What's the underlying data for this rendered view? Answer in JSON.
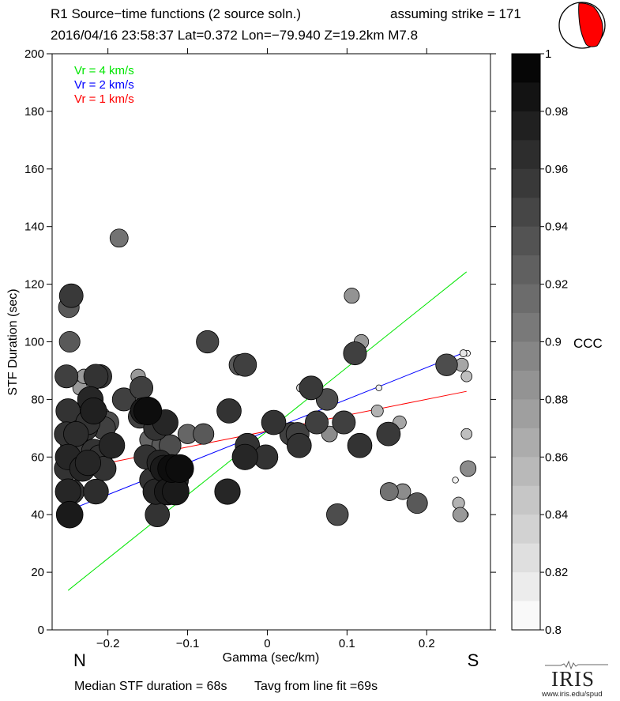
{
  "header": {
    "title": "R1 Source−time functions (2 source soln.)",
    "strike_text": "assuming strike = 171",
    "event_line": "2016/04/16 23:58:37  Lat=0.372 Lon=−79.940  Z=19.2km  M7.8"
  },
  "footer": {
    "median_text": "Median STF duration = 68s",
    "tavg_text": "Tavg from line fit =69s",
    "logo_text": "IRIS",
    "logo_url": "www.iris.edu/spud"
  },
  "direction_labels": {
    "left": "N",
    "right": "S"
  },
  "colors": {
    "vr4": "#00e600",
    "vr2": "#0000ff",
    "vr1": "#ff0000",
    "beachball": "#ff0000"
  },
  "chart_data": {
    "type": "scatter",
    "title": "R1 Source−time functions (2 source soln.)",
    "xlabel": "Gamma (sec/km)",
    "ylabel": "STF Duration (sec)",
    "xlim": [
      -0.27,
      0.28
    ],
    "ylim": [
      0,
      200
    ],
    "x_ticks": [
      -0.2,
      -0.1,
      0,
      0.1,
      0.2
    ],
    "x_tick_labels": [
      "−0.2",
      "−0.1",
      "0",
      "0.1",
      "0.2"
    ],
    "y_ticks": [
      0,
      20,
      40,
      60,
      80,
      100,
      120,
      140,
      160,
      180,
      200
    ],
    "y_tick_labels": [
      "0",
      "20",
      "40",
      "60",
      "80",
      "100",
      "120",
      "140",
      "160",
      "180",
      "200"
    ],
    "legend": [
      {
        "label": "Vr = 4 km/s",
        "color": "#00e600"
      },
      {
        "label": "Vr = 2 km/s",
        "color": "#0000ff"
      },
      {
        "label": "Vr = 1 km/s",
        "color": "#ff0000"
      }
    ],
    "lines": [
      {
        "name": "Vr = 4 km/s",
        "color": "#00e600",
        "x": [
          -0.25,
          0.25
        ],
        "y": [
          13.7,
          124.3
        ]
      },
      {
        "name": "Vr = 2 km/s",
        "color": "#0000ff",
        "x": [
          -0.25,
          0.25
        ],
        "y": [
          41.4,
          96.6
        ]
      },
      {
        "name": "Vr = 1 km/s",
        "color": "#ff0000",
        "x": [
          -0.25,
          0.25
        ],
        "y": [
          55.2,
          82.8
        ]
      }
    ],
    "colorbar": {
      "label": "CCC",
      "min": 0.8,
      "max": 1.0,
      "ticks": [
        0.8,
        0.82,
        0.84,
        0.86,
        0.88,
        0.9,
        0.92,
        0.94,
        0.96,
        0.98,
        1.0
      ],
      "tick_labels": [
        "0.8",
        "0.82",
        "0.84",
        "0.86",
        "0.88",
        "0.9",
        "0.92",
        "0.94",
        "0.96",
        "0.98",
        "1"
      ],
      "steps": 20
    },
    "points": [
      {
        "x": -0.246,
        "y": 116,
        "ccc": 0.955
      },
      {
        "x": -0.249,
        "y": 112,
        "ccc": 0.93
      },
      {
        "x": -0.248,
        "y": 100,
        "ccc": 0.93
      },
      {
        "x": -0.252,
        "y": 88,
        "ccc": 0.95
      },
      {
        "x": -0.235,
        "y": 84,
        "ccc": 0.88
      },
      {
        "x": -0.23,
        "y": 88,
        "ccc": 0.88
      },
      {
        "x": -0.25,
        "y": 76,
        "ccc": 0.96
      },
      {
        "x": -0.24,
        "y": 72,
        "ccc": 0.89
      },
      {
        "x": -0.238,
        "y": 76,
        "ccc": 0.89
      },
      {
        "x": -0.252,
        "y": 68,
        "ccc": 0.96
      },
      {
        "x": -0.245,
        "y": 64,
        "ccc": 0.95
      },
      {
        "x": -0.25,
        "y": 60,
        "ccc": 0.97
      },
      {
        "x": -0.252,
        "y": 56,
        "ccc": 0.96
      },
      {
        "x": -0.25,
        "y": 48,
        "ccc": 0.97
      },
      {
        "x": -0.245,
        "y": 48,
        "ccc": 0.96
      },
      {
        "x": -0.248,
        "y": 40,
        "ccc": 0.98
      },
      {
        "x": -0.24,
        "y": 68,
        "ccc": 0.965
      },
      {
        "x": -0.236,
        "y": 62,
        "ccc": 0.92
      },
      {
        "x": -0.23,
        "y": 64,
        "ccc": 0.9
      },
      {
        "x": -0.228,
        "y": 70,
        "ccc": 0.96
      },
      {
        "x": -0.225,
        "y": 72,
        "ccc": 0.96
      },
      {
        "x": -0.222,
        "y": 80,
        "ccc": 0.97
      },
      {
        "x": -0.218,
        "y": 76,
        "ccc": 0.975
      },
      {
        "x": -0.215,
        "y": 88,
        "ccc": 0.96
      },
      {
        "x": -0.21,
        "y": 88,
        "ccc": 0.955
      },
      {
        "x": -0.21,
        "y": 74,
        "ccc": 0.93
      },
      {
        "x": -0.205,
        "y": 70,
        "ccc": 0.95
      },
      {
        "x": -0.2,
        "y": 72,
        "ccc": 0.94
      },
      {
        "x": -0.195,
        "y": 64,
        "ccc": 0.97
      },
      {
        "x": -0.232,
        "y": 56,
        "ccc": 0.97
      },
      {
        "x": -0.225,
        "y": 58,
        "ccc": 0.97
      },
      {
        "x": -0.218,
        "y": 62,
        "ccc": 0.96
      },
      {
        "x": -0.215,
        "y": 48,
        "ccc": 0.965
      },
      {
        "x": -0.21,
        "y": 60,
        "ccc": 0.96
      },
      {
        "x": -0.205,
        "y": 56,
        "ccc": 0.96
      },
      {
        "x": -0.186,
        "y": 136,
        "ccc": 0.91
      },
      {
        "x": -0.18,
        "y": 80,
        "ccc": 0.95
      },
      {
        "x": -0.165,
        "y": 80,
        "ccc": 0.89
      },
      {
        "x": -0.162,
        "y": 88,
        "ccc": 0.88
      },
      {
        "x": -0.158,
        "y": 84,
        "ccc": 0.95
      },
      {
        "x": -0.16,
        "y": 74,
        "ccc": 0.95
      },
      {
        "x": -0.155,
        "y": 76,
        "ccc": 0.98
      },
      {
        "x": -0.15,
        "y": 76,
        "ccc": 0.99
      },
      {
        "x": -0.152,
        "y": 60,
        "ccc": 0.96
      },
      {
        "x": -0.148,
        "y": 66,
        "ccc": 0.92
      },
      {
        "x": -0.145,
        "y": 52,
        "ccc": 0.96
      },
      {
        "x": -0.14,
        "y": 70,
        "ccc": 0.96
      },
      {
        "x": -0.14,
        "y": 48,
        "ccc": 0.97
      },
      {
        "x": -0.138,
        "y": 40,
        "ccc": 0.96
      },
      {
        "x": -0.135,
        "y": 58,
        "ccc": 0.97
      },
      {
        "x": -0.132,
        "y": 64,
        "ccc": 0.93
      },
      {
        "x": -0.13,
        "y": 56,
        "ccc": 0.98
      },
      {
        "x": -0.128,
        "y": 72,
        "ccc": 0.97
      },
      {
        "x": -0.125,
        "y": 48,
        "ccc": 0.98
      },
      {
        "x": -0.122,
        "y": 64,
        "ccc": 0.94
      },
      {
        "x": -0.12,
        "y": 56,
        "ccc": 0.99
      },
      {
        "x": -0.115,
        "y": 52,
        "ccc": 0.97
      },
      {
        "x": -0.115,
        "y": 48,
        "ccc": 0.98
      },
      {
        "x": -0.11,
        "y": 56,
        "ccc": 0.99
      },
      {
        "x": -0.1,
        "y": 68,
        "ccc": 0.92
      },
      {
        "x": -0.08,
        "y": 68,
        "ccc": 0.93
      },
      {
        "x": -0.075,
        "y": 100,
        "ccc": 0.945
      },
      {
        "x": -0.05,
        "y": 48,
        "ccc": 0.97
      },
      {
        "x": -0.048,
        "y": 76,
        "ccc": 0.96
      },
      {
        "x": -0.035,
        "y": 92,
        "ccc": 0.93
      },
      {
        "x": -0.028,
        "y": 92,
        "ccc": 0.95
      },
      {
        "x": -0.025,
        "y": 64,
        "ccc": 0.96
      },
      {
        "x": -0.028,
        "y": 60,
        "ccc": 0.97
      },
      {
        "x": -0.002,
        "y": 60,
        "ccc": 0.96
      },
      {
        "x": 0.008,
        "y": 72,
        "ccc": 0.96
      },
      {
        "x": 0.03,
        "y": 68,
        "ccc": 0.95
      },
      {
        "x": 0.038,
        "y": 68,
        "ccc": 0.95
      },
      {
        "x": 0.04,
        "y": 64,
        "ccc": 0.96
      },
      {
        "x": 0.042,
        "y": 84,
        "ccc": 0.83
      },
      {
        "x": 0.055,
        "y": 84,
        "ccc": 0.955
      },
      {
        "x": 0.062,
        "y": 72,
        "ccc": 0.95
      },
      {
        "x": 0.075,
        "y": 80,
        "ccc": 0.94
      },
      {
        "x": 0.078,
        "y": 68,
        "ccc": 0.89
      },
      {
        "x": 0.088,
        "y": 40,
        "ccc": 0.94
      },
      {
        "x": 0.096,
        "y": 72,
        "ccc": 0.95
      },
      {
        "x": 0.106,
        "y": 116,
        "ccc": 0.885
      },
      {
        "x": 0.11,
        "y": 96,
        "ccc": 0.95
      },
      {
        "x": 0.118,
        "y": 100,
        "ccc": 0.88
      },
      {
        "x": 0.116,
        "y": 64,
        "ccc": 0.96
      },
      {
        "x": 0.138,
        "y": 76,
        "ccc": 0.86
      },
      {
        "x": 0.14,
        "y": 84,
        "ccc": 0.81
      },
      {
        "x": 0.152,
        "y": 68,
        "ccc": 0.955
      },
      {
        "x": 0.153,
        "y": 48,
        "ccc": 0.91
      },
      {
        "x": 0.166,
        "y": 72,
        "ccc": 0.87
      },
      {
        "x": 0.17,
        "y": 48,
        "ccc": 0.89
      },
      {
        "x": 0.188,
        "y": 44,
        "ccc": 0.93
      },
      {
        "x": 0.225,
        "y": 92,
        "ccc": 0.94
      },
      {
        "x": 0.236,
        "y": 52,
        "ccc": 0.81
      },
      {
        "x": 0.24,
        "y": 44,
        "ccc": 0.86
      },
      {
        "x": 0.242,
        "y": 40,
        "ccc": 0.88
      },
      {
        "x": 0.244,
        "y": 92,
        "ccc": 0.87
      },
      {
        "x": 0.246,
        "y": 96,
        "ccc": 0.82
      },
      {
        "x": 0.248,
        "y": 40,
        "ccc": 0.82
      },
      {
        "x": 0.25,
        "y": 68,
        "ccc": 0.85
      },
      {
        "x": 0.25,
        "y": 88,
        "ccc": 0.85
      },
      {
        "x": 0.251,
        "y": 96,
        "ccc": 0.81
      },
      {
        "x": 0.252,
        "y": 56,
        "ccc": 0.89
      }
    ]
  }
}
